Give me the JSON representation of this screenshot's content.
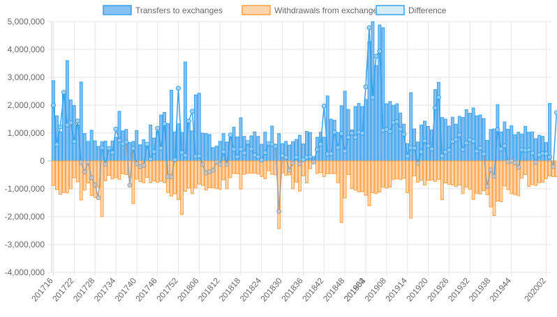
{
  "chart_data": {
    "type": "bar",
    "legend_position": "top-center",
    "series": [
      {
        "name": "Transfers to exchanges",
        "kind": "bar",
        "color": "#36a2eb",
        "fill": "#86bff1"
      },
      {
        "name": "Withdrawals from exchanges",
        "kind": "bar",
        "color": "#ff9f40",
        "fill": "#ffd5ae"
      },
      {
        "name": "Difference",
        "kind": "line",
        "color": "#36a2eb",
        "fill": "#d6ecfb"
      }
    ],
    "y_ticks": [
      "5,000,000",
      "4,000,000",
      "3,000,000",
      "2,000,000",
      "1,000,000",
      "0",
      "-1,000,000",
      "-2,000,000",
      "-3,000,000",
      "-4,000,000"
    ],
    "ylim": [
      -4000000,
      5000000
    ],
    "x_tick_labels": [
      "201716",
      "201722",
      "201728",
      "201734",
      "201740",
      "201746",
      "201752",
      "201806",
      "201812",
      "201818",
      "201824",
      "201830",
      "201836",
      "201842",
      "201848",
      "201854",
      "201902",
      "201908",
      "201914",
      "201920",
      "201926",
      "201932",
      "201938",
      "201944",
      "202002"
    ],
    "grid": true,
    "transfers": [
      2880000,
      1620000,
      1050000,
      2380000,
      3600000,
      2190000,
      1990000,
      1290000,
      2830000,
      980000,
      700000,
      1100000,
      720000,
      520000,
      690000,
      710000,
      480000,
      710000,
      850000,
      1780000,
      1080000,
      1130000,
      660000,
      700000,
      1090000,
      580000,
      760000,
      560000,
      1290000,
      820000,
      1060000,
      1650000,
      1740000,
      1340000,
      2540000,
      1040000,
      1330000,
      1020000,
      3550000,
      1350000,
      1080000,
      2370000,
      2430000,
      1000000,
      980000,
      950000,
      480000,
      530000,
      700000,
      980000,
      680000,
      920000,
      1210000,
      860000,
      1550000,
      880000,
      640000,
      900000,
      1040000,
      880000,
      600000,
      1030000,
      570000,
      1250000,
      600000,
      980000,
      620000,
      700000,
      570000,
      690000,
      770000,
      920000,
      610000,
      1060000,
      1020000,
      150000,
      850000,
      1030000,
      850000,
      2330000,
      1500000,
      1460000,
      1020000,
      1980000,
      2500000,
      1850000,
      1110000,
      1950000,
      2060000,
      1950000,
      2200000,
      4280000,
      5000000,
      3420000,
      4880000,
      4780000,
      2050000,
      2130000,
      2000000,
      2050000,
      1720000,
      1320000,
      620000,
      2450000,
      1150000,
      680000,
      1290000,
      1430000,
      1240000,
      1110000,
      2560000,
      2820000,
      1560000,
      1500000,
      1250000,
      1570000,
      1320000,
      1600000,
      1560000,
      1840000,
      1710000,
      1900000,
      1620000,
      1650000,
      1520000,
      740000,
      1130000,
      1150000,
      2020000,
      1040000,
      1400000,
      1140000,
      1260000,
      940000,
      1030000,
      960000,
      1240000,
      1030000,
      1040000,
      800000,
      920000,
      880000,
      660000,
      2060000
    ],
    "withdrawals": [
      -880000,
      -1030000,
      -1200000,
      -1130000,
      -1150000,
      -1000000,
      -610000,
      -750000,
      -1400000,
      -1040000,
      -790000,
      -1240000,
      -1310000,
      -940000,
      -2000000,
      -710000,
      -520000,
      -650000,
      -600000,
      -660000,
      -460000,
      -490000,
      -580000,
      -1530000,
      -650000,
      -740000,
      -780000,
      -590000,
      -780000,
      -720000,
      -770000,
      -730000,
      -780000,
      -1130000,
      -1260000,
      -1180000,
      -1390000,
      -1920000,
      -1090000,
      -970000,
      -1170000,
      -970000,
      -830000,
      -880000,
      -1040000,
      -960000,
      -960000,
      -990000,
      -1020000,
      -680000,
      -1000000,
      -600000,
      -450000,
      -460000,
      -1010000,
      -480000,
      -450000,
      -440000,
      -440000,
      -470000,
      -560000,
      -640000,
      -350000,
      -480000,
      -500000,
      -2430000,
      -430000,
      -510000,
      -500000,
      -1000000,
      -760000,
      -1080000,
      -540000,
      -790000,
      -280000,
      -70000,
      -450000,
      -420000,
      -560000,
      -460000,
      -450000,
      -460000,
      -780000,
      -2210000,
      -1330000,
      -490000,
      -990000,
      -1050000,
      -1110000,
      -1100000,
      -1230000,
      -1610000,
      -1140000,
      -1170000,
      -1120000,
      -940000,
      -970000,
      -940000,
      -670000,
      -640000,
      -670000,
      -630000,
      -1140000,
      -2050000,
      -540000,
      -760000,
      -700000,
      -870000,
      -700000,
      -690000,
      -730000,
      -660000,
      -1390000,
      -790000,
      -840000,
      -860000,
      -920000,
      -870000,
      -1170000,
      -940000,
      -1020000,
      -1380000,
      -1160000,
      -1190000,
      -1070000,
      -1210000,
      -1650000,
      -1960000,
      -1440000,
      -1460000,
      -900000,
      -1030000,
      -1170000,
      -1210000,
      -1250000,
      -620000,
      -490000,
      -920000,
      -850000,
      -880000,
      -780000,
      -760000,
      -640000,
      -540000,
      -560000,
      -560000,
      -330000
    ],
    "difference": [
      2000000,
      590000,
      1220000,
      2460000,
      1290000,
      1370000,
      700000,
      1430000,
      -50000,
      -390000,
      -50000,
      -600000,
      -860000,
      -1320000,
      470000,
      -120000,
      450000,
      300000,
      1140000,
      740000,
      620000,
      680000,
      -870000,
      450000,
      -100000,
      -200000,
      -160000,
      600000,
      70000,
      330000,
      1170000,
      460000,
      1330000,
      -560000,
      -570000,
      50000,
      2610000,
      300000,
      200000,
      1430000,
      1780000,
      170000,
      180000,
      -130000,
      -430000,
      -390000,
      -330000,
      -40000,
      -120000,
      330000,
      -120000,
      930000,
      420000,
      150000,
      420000,
      290000,
      660000,
      430000,
      210000,
      150000,
      40000,
      300000,
      620000,
      600000,
      520000,
      -1810000,
      190000,
      130000,
      -330000,
      -80000,
      130000,
      -100000,
      50000,
      130000,
      150000,
      -40000,
      410000,
      600000,
      1970000,
      250000,
      260000,
      1030000,
      480000,
      980000,
      350000,
      850000,
      1000000,
      850000,
      1030000,
      1000000,
      2660000,
      4780000,
      2280000,
      3760000,
      3940000,
      1100000,
      1130000,
      1060000,
      1380000,
      1410000,
      1140000,
      960000,
      170000,
      470000,
      460000,
      -80000,
      330000,
      720000,
      540000,
      430000,
      1910000,
      2280000,
      180000,
      320000,
      390000,
      700000,
      770000,
      930000,
      410000,
      640000,
      760000,
      710000,
      350000,
      460000,
      250000,
      -910000,
      -320000,
      -550000,
      1120000,
      430000,
      540000,
      -30000,
      -10000,
      -70000,
      -230000,
      400000,
      390000,
      400000,
      280000,
      -50000,
      220000,
      270000,
      260000,
      140000,
      -200000,
      1730000
    ]
  }
}
